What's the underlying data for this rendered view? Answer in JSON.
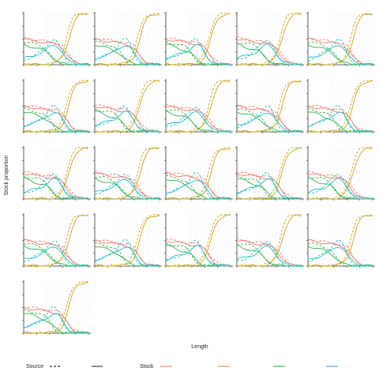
{
  "chart_data": {
    "type": "line",
    "title": "",
    "xlabel": "Length",
    "ylabel": "Stock proportion",
    "xlim": [
      0,
      100
    ],
    "ylim": [
      0,
      1
    ],
    "grid": true,
    "panel_count": 21,
    "panel_layout": "5 columns x 5 rows",
    "legend_placement": "bottom",
    "legend": {
      "source_title": "Source",
      "source_entries": [
        {
          "name": "",
          "linetype": "dashed"
        },
        {
          "name": "",
          "linetype": "solid"
        }
      ],
      "stock_title": "Stock",
      "stock_entries": [
        {
          "name": "",
          "color": "#F8766D"
        },
        {
          "name": "",
          "color": "#C9A716"
        },
        {
          "name": "",
          "color": "#2DB34A"
        },
        {
          "name": "",
          "color": "#1FBFC4"
        }
      ]
    },
    "x": [
      0,
      5,
      10,
      15,
      20,
      25,
      30,
      35,
      40,
      45,
      50,
      55,
      60,
      65,
      70,
      75,
      80,
      85,
      90,
      95,
      100
    ],
    "series": [
      {
        "stock": "red",
        "source": "solid",
        "values": [
          0.5,
          0.49,
          0.48,
          0.47,
          0.46,
          0.45,
          0.44,
          0.43,
          0.42,
          0.41,
          0.4,
          0.37,
          0.32,
          0.24,
          0.15,
          0.08,
          0.04,
          0.02,
          0.01,
          0.0,
          0.0
        ]
      },
      {
        "stock": "red",
        "source": "dashed",
        "values": [
          0.52,
          0.51,
          0.5,
          0.49,
          0.48,
          0.47,
          0.46,
          0.45,
          0.44,
          0.43,
          0.42,
          0.4,
          0.36,
          0.28,
          0.18,
          0.1,
          0.05,
          0.02,
          0.01,
          0.0,
          0.0
        ]
      },
      {
        "stock": "yellow",
        "source": "solid",
        "values": [
          0.0,
          0.0,
          0.0,
          0.0,
          0.0,
          0.0,
          0.0,
          0.0,
          0.01,
          0.02,
          0.04,
          0.08,
          0.15,
          0.3,
          0.52,
          0.74,
          0.88,
          0.95,
          0.98,
          0.99,
          1.0
        ]
      },
      {
        "stock": "yellow",
        "source": "dashed",
        "values": [
          0.0,
          0.0,
          0.0,
          0.0,
          0.0,
          0.0,
          0.0,
          0.0,
          0.01,
          0.03,
          0.06,
          0.12,
          0.25,
          0.46,
          0.7,
          0.88,
          0.96,
          0.99,
          1.0,
          1.0,
          1.0
        ]
      },
      {
        "stock": "green",
        "source": "solid",
        "values": [
          0.4,
          0.38,
          0.36,
          0.34,
          0.32,
          0.3,
          0.28,
          0.25,
          0.2,
          0.14,
          0.08,
          0.04,
          0.02,
          0.01,
          0.0,
          0.0,
          0.0,
          0.0,
          0.0,
          0.0,
          0.0
        ]
      },
      {
        "stock": "green",
        "source": "dashed",
        "values": [
          0.44,
          0.43,
          0.42,
          0.41,
          0.4,
          0.38,
          0.35,
          0.3,
          0.22,
          0.13,
          0.06,
          0.02,
          0.01,
          0.0,
          0.0,
          0.0,
          0.0,
          0.0,
          0.0,
          0.0,
          0.0
        ]
      },
      {
        "stock": "cyan",
        "source": "solid",
        "values": [
          0.12,
          0.14,
          0.16,
          0.18,
          0.2,
          0.22,
          0.25,
          0.29,
          0.34,
          0.38,
          0.38,
          0.33,
          0.24,
          0.14,
          0.07,
          0.03,
          0.01,
          0.0,
          0.0,
          0.0,
          0.0
        ]
      },
      {
        "stock": "cyan",
        "source": "dashed",
        "values": [
          0.1,
          0.12,
          0.14,
          0.17,
          0.2,
          0.24,
          0.29,
          0.36,
          0.44,
          0.5,
          0.48,
          0.38,
          0.24,
          0.12,
          0.05,
          0.02,
          0.0,
          0.0,
          0.0,
          0.0,
          0.0
        ]
      }
    ]
  }
}
